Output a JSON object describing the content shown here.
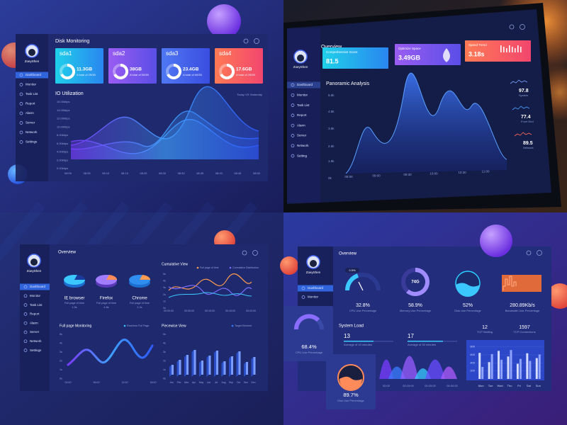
{
  "q1": {
    "user": "ZoeyShen",
    "nav": [
      "Dashboard",
      "Monitor",
      "Task List",
      "Report",
      "Alarm",
      "Server",
      "Network",
      "Settings"
    ],
    "title": "Disk Monitoring",
    "disks": [
      {
        "name": "sda1",
        "used": "11.3GB",
        "total": "A total of 25GB"
      },
      {
        "name": "sda2",
        "used": "38GB",
        "total": "A total of 50GB"
      },
      {
        "name": "sda3",
        "used": "23.4GB",
        "total": "A total of 60GB"
      },
      {
        "name": "sda4",
        "used": "17.6GB",
        "total": "A total of 25GB"
      }
    ],
    "io_title": "IO Utilization",
    "io_legend": "Today VS Yesterday",
    "io_yticks": [
      "16.00kbps",
      "14.00kbps",
      "12.00kbps",
      "10.00kbps",
      "8.00kbps",
      "6.00kbps",
      "4.00kbps",
      "2.00kbps",
      "0.00kbps"
    ],
    "io_xticks": [
      "08:00",
      "08:05",
      "08:10",
      "08:15",
      "08:20",
      "08:25",
      "08:30",
      "08:35",
      "08:40",
      "08:45",
      "08:50"
    ]
  },
  "q2": {
    "user": "ZoeyShen",
    "nav": [
      "Dashboard",
      "Monitor",
      "Task List",
      "Report",
      "Alarm",
      "Server",
      "Network",
      "Setting"
    ],
    "title": "Overview",
    "cards": [
      {
        "label": "Comprehensive Score",
        "value": "81.5"
      },
      {
        "label": "Optimize Space",
        "value": "3.49GB"
      },
      {
        "label": "Speed Trend",
        "value": "3.18s"
      }
    ],
    "chart_title": "Panoramic Analysis",
    "yticks": [
      "5.5k",
      "4.5k",
      "3.5k",
      "2.5k",
      "1.5k",
      "0k"
    ],
    "xticks": [
      "08:00",
      "09:00",
      "09:30",
      "10:00",
      "10:30",
      "11:00"
    ],
    "stats": [
      {
        "value": "97.8",
        "label": "System"
      },
      {
        "value": "77.4",
        "label": "Front End"
      },
      {
        "value": "89.5",
        "label": "Network"
      }
    ]
  },
  "q3": {
    "user": "ZoeyShen",
    "nav": [
      "Dashboard",
      "Monitor",
      "Task List",
      "Report",
      "Alarm",
      "Server",
      "Network",
      "Settings"
    ],
    "title": "Overview",
    "browsers": [
      {
        "name": "IE browser",
        "label": "Full page of time",
        "value": "1.5s"
      },
      {
        "name": "Firefox",
        "label": "Full page of time",
        "value": "4.8s"
      },
      {
        "name": "Chrome",
        "label": "Full page of time",
        "value": "2.2s"
      }
    ],
    "cumulative": {
      "title": "Cumulative View",
      "legend": [
        "Full page of time",
        "Cumulative Distribution"
      ],
      "yticks": [
        "5s",
        "4s",
        "3s",
        "2s",
        "1s",
        "0s"
      ],
      "xticks": [
        "00:00:00",
        "00:05:00",
        "00:10:00",
        "00:15:00",
        "00:20:00"
      ]
    },
    "monitoring": {
      "title": "Full page Monitoring",
      "legend": "Real time Full Page",
      "yticks": [
        "5s",
        "4s",
        "3s",
        "2s",
        "1s",
        "0s"
      ],
      "xticks": [
        "00:00",
        "06:00",
        "12:00",
        "18:00"
      ]
    },
    "piecewise": {
      "title": "Piecewise View",
      "legend": "Target Element",
      "yticks": [
        "5s",
        "4s",
        "3s",
        "2s",
        "1s",
        "0s"
      ],
      "months": [
        "Jan",
        "Feb",
        "Mar",
        "Apr",
        "May",
        "Jun",
        "Jul",
        "Aug",
        "Sep",
        "Oct",
        "Nov",
        "Dec"
      ]
    }
  },
  "q4": {
    "user": "ZoeyShen",
    "nav": [
      "Dashboard",
      "Monitor"
    ],
    "title": "Overview",
    "badge": "0.5%",
    "gauges": [
      {
        "value": "32.8%",
        "label": "CPU Use Percentage"
      },
      {
        "value": "58.9%",
        "label": "Memory Use Percentage",
        "inner": "74G"
      },
      {
        "value": "52%",
        "label": "Disk Use Percentage"
      },
      {
        "value": "280.89Kb/s",
        "label": "Bandwidth Use Percentage"
      }
    ],
    "popups": [
      {
        "value": "68.4%",
        "label": "CPU Use Percentage"
      },
      {
        "value": "89.7%",
        "label": "Disk Use Percentage"
      }
    ],
    "load_title": "System Load",
    "loads": [
      {
        "value": "13",
        "label": "Average of 10 minutes"
      },
      {
        "value": "17",
        "label": "Average of 30 minutes"
      }
    ],
    "tcp": [
      {
        "value": "12",
        "label": "TCP Waiting"
      },
      {
        "value": "1597",
        "label": "TCP Connections"
      }
    ],
    "wave_xticks": [
      "00:00",
      "00:15:00",
      "00:25:00",
      "00:30:00"
    ]
  },
  "chart_data": {
    "type": "bar",
    "categories": [
      "Mon",
      "Tue",
      "Wed",
      "Thu",
      "Fri",
      "Sat",
      "Sun"
    ],
    "series": [
      {
        "color": "#d4dcff",
        "values": [
          650,
          420,
          700,
          560,
          380,
          640,
          520
        ]
      },
      {
        "color": "#8ea2ff",
        "values": [
          300,
          620,
          480,
          720,
          500,
          450,
          610
        ]
      }
    ],
    "ylim": [
      0,
      900
    ],
    "yticks": [
      200,
      400,
      600,
      800
    ]
  }
}
